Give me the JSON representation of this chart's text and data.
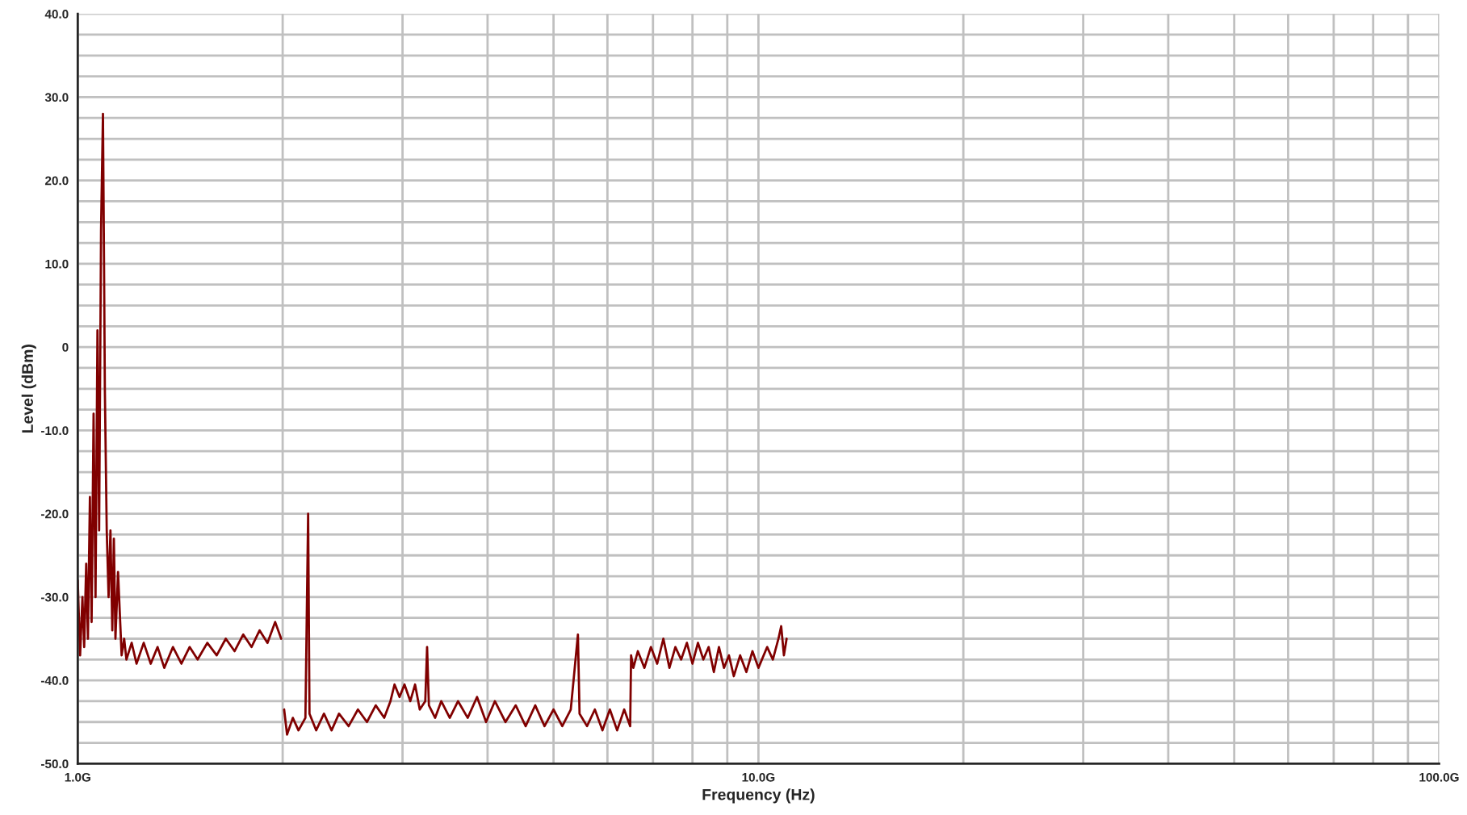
{
  "chart_data": {
    "type": "line",
    "xlabel": "Frequency (Hz)",
    "ylabel": "Level (dBm)",
    "xlim": [
      1,
      100
    ],
    "ylim": [
      -50,
      40
    ],
    "log": "x",
    "grid": true,
    "legend": false,
    "marker": "none",
    "line_style": "solid",
    "xticks": [
      {
        "value": 1,
        "label": "1.0G"
      },
      {
        "value": 2,
        "label": null
      },
      {
        "value": 3,
        "label": null
      },
      {
        "value": 4,
        "label": null
      },
      {
        "value": 5,
        "label": null
      },
      {
        "value": 6,
        "label": null
      },
      {
        "value": 7,
        "label": null
      },
      {
        "value": 8,
        "label": null
      },
      {
        "value": 9,
        "label": null
      },
      {
        "value": 10,
        "label": "10.0G"
      },
      {
        "value": 20,
        "label": null
      },
      {
        "value": 30,
        "label": null
      },
      {
        "value": 40,
        "label": null
      },
      {
        "value": 50,
        "label": null
      },
      {
        "value": 60,
        "label": null
      },
      {
        "value": 70,
        "label": null
      },
      {
        "value": 80,
        "label": null
      },
      {
        "value": 90,
        "label": null
      },
      {
        "value": 100,
        "label": "100.0G"
      }
    ],
    "yticks": [
      {
        "value": -50,
        "label": "-50.0"
      },
      {
        "value": -47.5,
        "label": null
      },
      {
        "value": -45,
        "label": null
      },
      {
        "value": -42.5,
        "label": null
      },
      {
        "value": -40,
        "label": "-40.0"
      },
      {
        "value": -37.5,
        "label": null
      },
      {
        "value": -35,
        "label": null
      },
      {
        "value": -32.5,
        "label": null
      },
      {
        "value": -30,
        "label": "-30.0"
      },
      {
        "value": -27.5,
        "label": null
      },
      {
        "value": -25,
        "label": null
      },
      {
        "value": -22.5,
        "label": null
      },
      {
        "value": -20,
        "label": "-20.0"
      },
      {
        "value": -17.5,
        "label": null
      },
      {
        "value": -15,
        "label": null
      },
      {
        "value": -12.5,
        "label": null
      },
      {
        "value": -10,
        "label": "-10.0"
      },
      {
        "value": -7.5,
        "label": null
      },
      {
        "value": -5,
        "label": null
      },
      {
        "value": -2.5,
        "label": null
      },
      0,
      {
        "value": 2.5,
        "label": null
      },
      {
        "value": 5,
        "label": null
      },
      {
        "value": 7.5,
        "label": null
      },
      {
        "value": 10,
        "label": "10.0"
      },
      {
        "value": 12.5,
        "label": null
      },
      {
        "value": 15,
        "label": null
      },
      {
        "value": 17.5,
        "label": null
      },
      {
        "value": 20,
        "label": "20.0"
      },
      {
        "value": 22.5,
        "label": null
      },
      {
        "value": 25,
        "label": null
      },
      {
        "value": 27.5,
        "label": null
      },
      {
        "value": 30,
        "label": "30.0"
      },
      {
        "value": 32.5,
        "label": null
      },
      {
        "value": 35,
        "label": null
      },
      {
        "value": 37.5,
        "label": null
      },
      {
        "value": 40,
        "label": "40.0"
      }
    ],
    "series": [
      {
        "color": "#800000",
        "x": [
          1.0,
          1.008,
          1.016,
          1.022,
          1.029,
          1.035,
          1.042,
          1.048,
          1.055,
          1.062,
          1.069,
          1.075,
          1.082,
          1.089,
          1.093,
          1.096,
          1.103,
          1.11,
          1.117,
          1.124,
          1.13,
          1.136,
          1.146,
          1.16,
          1.17,
          1.179,
          1.2,
          1.22,
          1.25,
          1.28,
          1.31,
          1.34,
          1.38,
          1.42,
          1.46,
          1.5,
          1.55,
          1.6,
          1.65,
          1.7,
          1.75,
          1.8,
          1.85,
          1.9,
          1.95,
          1.99,
          2.0,
          2.01,
          2.03,
          2.07,
          2.11,
          2.16,
          2.18,
          2.19,
          2.24,
          2.3,
          2.36,
          2.42,
          2.5,
          2.58,
          2.66,
          2.74,
          2.82,
          2.88,
          2.92,
          2.97,
          3.02,
          3.08,
          3.13,
          3.18,
          3.24,
          3.26,
          3.28,
          3.35,
          3.42,
          3.52,
          3.62,
          3.74,
          3.86,
          3.98,
          4.1,
          4.25,
          4.4,
          4.55,
          4.7,
          4.85,
          5.0,
          5.15,
          5.3,
          5.43,
          5.46,
          5.6,
          5.75,
          5.9,
          6.05,
          6.2,
          6.35,
          6.48,
          6.5,
          6.55,
          6.65,
          6.8,
          6.95,
          7.1,
          7.25,
          7.4,
          7.55,
          7.7,
          7.85,
          8.0,
          8.15,
          8.3,
          8.45,
          8.6,
          8.75,
          8.9,
          9.05,
          9.2,
          9.4,
          9.6,
          9.8,
          10.0,
          10.3,
          10.5,
          10.7,
          10.8,
          10.9,
          11.0
        ],
        "values": [
          -28,
          -37,
          -30,
          -36,
          -26,
          -35,
          -18,
          -33,
          -8,
          -30,
          2,
          -22,
          14,
          28,
          10,
          -5,
          -22,
          -30,
          -22,
          -34,
          -23,
          -35,
          -27,
          -37,
          -35,
          -37.5,
          -35.5,
          -38,
          -35.5,
          -38,
          -36,
          -38.5,
          -36,
          -38,
          -36,
          -37.5,
          -35.5,
          -37,
          -35,
          -36.5,
          -34.5,
          -36,
          -34,
          -35.5,
          -33,
          -35,
          null,
          -43.5,
          -46.5,
          -44.5,
          -46,
          -44.5,
          -20,
          -44,
          -46,
          -44,
          -46,
          -44,
          -45.5,
          -43.5,
          -45,
          -43,
          -44.5,
          -42.5,
          -40.5,
          -42,
          -40.5,
          -42.5,
          -40.5,
          -43.5,
          -42.5,
          -36,
          -43,
          -44.5,
          -42.5,
          -44.5,
          -42.5,
          -44.5,
          -42,
          -45,
          -42.5,
          -45,
          -43,
          -45.5,
          -43,
          -45.5,
          -43.5,
          -45.5,
          -43.5,
          -34.5,
          -44,
          -45.5,
          -43.5,
          -46,
          -43.5,
          -46,
          -43.5,
          -45.5,
          -37,
          -38.5,
          -36.5,
          -38.5,
          -36,
          -38,
          -35,
          -38.5,
          -36,
          -37.5,
          -35.5,
          -38,
          -35.5,
          -37.5,
          -36,
          -39,
          -36,
          -38.5,
          -37,
          -39.5,
          -37,
          -39,
          -36.5,
          -38.5,
          -36,
          -37.5,
          -35,
          -33.5,
          -37,
          -35
        ]
      }
    ]
  }
}
